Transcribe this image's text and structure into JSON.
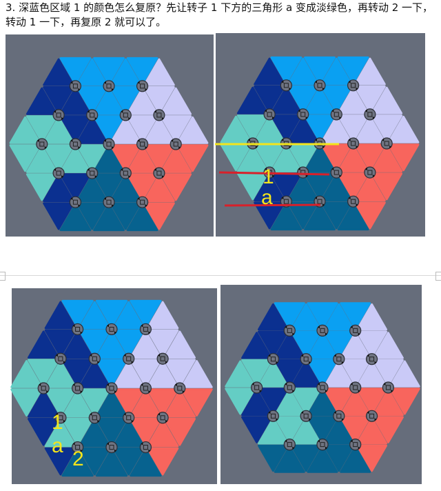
{
  "document": {
    "paragraph": "3. 深蓝色区域 1 的颜色怎么复原？先让转子 1 下方的三角形 a 变成淡绿色，再转动 2 一下，转动 1 一下，再复原 2 就可以了。"
  },
  "colors": {
    "D": "#0b3090",
    "L": "#0aa0f2",
    "V": "#cacaf7",
    "T": "#64cdc4",
    "R": "#f8655d",
    "S": "#07628f",
    "background": "#666d7b",
    "annotation_yellow": "#f3e51c",
    "annotation_red": "#d8202a"
  },
  "figures": [
    {
      "rows": [
        "DLLLLLV",
        "DDDLLLVVV",
        "TTTDDLVVVVV",
        "TTTTTSRRRRR",
        "TDDSSSRRR",
        "DSSSSSR"
      ],
      "labels": []
    },
    {
      "rows": [
        "DLLLLLV",
        "DDDLLLVVV",
        "TTTDDLVVVVV",
        "TTTTTSRRRRR",
        "TDDSSSRRR",
        "DSSSSSR"
      ],
      "labels": [
        "1",
        "a"
      ]
    },
    {
      "rows": [
        "DLLLLLV",
        "DDDLLLVVV",
        "TTTDDLVVVVV",
        "TDTTTSRRRRR",
        "DTTSSSRRR",
        "DSSSSSR"
      ],
      "labels": [
        "1",
        "a",
        "2"
      ]
    },
    {
      "rows": [
        "DLLLLLV",
        "DDDLLLVVV",
        "TTTDDLVVVVV",
        "TDDTTSRRRRR",
        "DTTTSSRRR",
        "SSSSSSR"
      ],
      "labels": []
    }
  ]
}
